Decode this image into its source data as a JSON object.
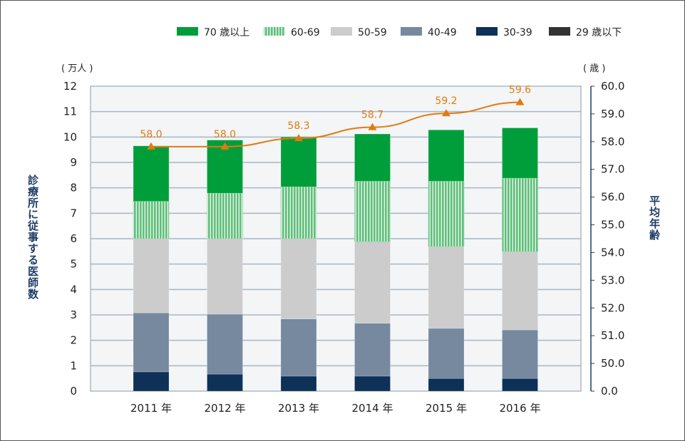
{
  "chart_data": {
    "type": "bar",
    "subtype": "stacked-bar-with-line",
    "categories": [
      "2011 年",
      "2012 年",
      "2013 年",
      "2014 年",
      "2015 年",
      "2016 年"
    ],
    "series": [
      {
        "name": "29 歳以下",
        "color": "#333333",
        "pattern": "solid",
        "values": [
          0,
          0,
          0,
          0,
          0,
          0
        ]
      },
      {
        "name": "30-39",
        "color": "#0e3158",
        "pattern": "solid",
        "values": [
          0.76,
          0.67,
          0.59,
          0.59,
          0.5,
          0.5
        ]
      },
      {
        "name": "40-49",
        "color": "#76899f",
        "pattern": "solid",
        "values": [
          2.32,
          2.36,
          2.25,
          2.08,
          1.97,
          1.91
        ]
      },
      {
        "name": "50-59",
        "color": "#cccccc",
        "pattern": "solid",
        "values": [
          2.92,
          2.97,
          3.16,
          3.21,
          3.22,
          3.08
        ]
      },
      {
        "name": "60-69",
        "color": "#5fbf7a",
        "pattern": "vertical-stripes",
        "values": [
          1.47,
          1.79,
          2.04,
          2.38,
          2.57,
          2.89
        ]
      },
      {
        "name": "70 歳以上",
        "color": "#009e3a",
        "pattern": "solid",
        "values": [
          2.18,
          2.09,
          1.96,
          1.86,
          2.02,
          1.98
        ]
      }
    ],
    "line_series": {
      "name": "平均年齢",
      "color": "#e07b10",
      "marker": "triangle",
      "values": [
        58.0,
        58.0,
        58.3,
        58.7,
        59.2,
        59.6
      ],
      "labels": [
        "58.0",
        "58.0",
        "58.3",
        "58.7",
        "59.2",
        "59.6"
      ]
    },
    "legend": {
      "placement": "top-right",
      "items": [
        "70 歳以上",
        "60-69",
        "50-59",
        "40-49",
        "30-39",
        "29 歳以下"
      ]
    },
    "left_axis": {
      "label": "診療所に従事する医師数",
      "unit": "( 万人 )",
      "ylim": [
        0,
        12
      ],
      "ticks": [
        "0",
        "1",
        "2",
        "3",
        "4",
        "5",
        "6",
        "7",
        "8",
        "9",
        "10",
        "11",
        "12"
      ]
    },
    "right_axis": {
      "label": "平均年齢",
      "unit": "( 歳 )",
      "broken": true,
      "ticks": [
        "0.0",
        "50.0",
        "51.0",
        "52.0",
        "53.0",
        "54.0",
        "55.0",
        "56.0",
        "57.0",
        "58.0",
        "59.0",
        "60.0"
      ]
    },
    "grid": true
  }
}
